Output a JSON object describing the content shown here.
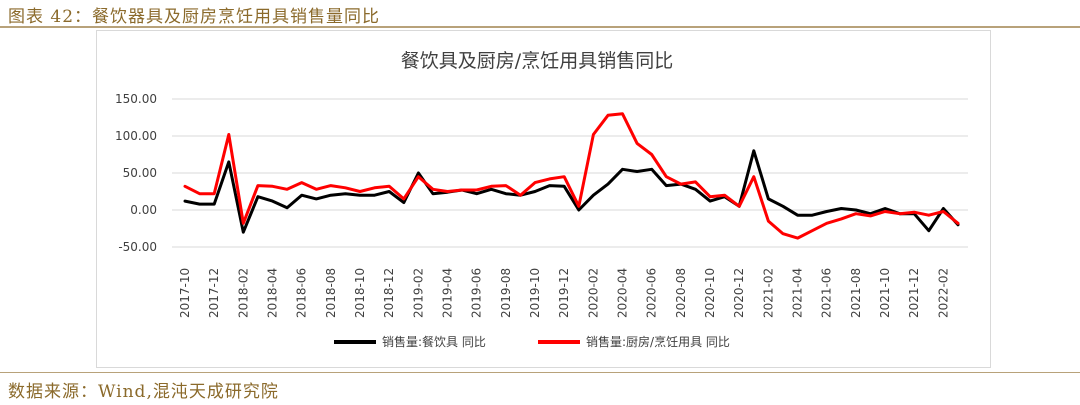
{
  "caption": "图表 42：餐饮器具及厨房烹饪用具销售量同比",
  "source": "数据来源：Wind,混沌天成研究院",
  "chart_data": {
    "type": "line",
    "title": "餐饮具及厨房/烹饪用具销售同比",
    "ylim": [
      -50,
      150
    ],
    "yticks": [
      "150.00",
      "100.00",
      "50.00",
      "0.00",
      "-50.00"
    ],
    "ytick_values": [
      150,
      100,
      50,
      0,
      -50
    ],
    "x": [
      "2017-10",
      "2017-11",
      "2017-12",
      "2018-01",
      "2018-02",
      "2018-03",
      "2018-04",
      "2018-05",
      "2018-06",
      "2018-07",
      "2018-08",
      "2018-09",
      "2018-10",
      "2018-11",
      "2018-12",
      "2019-01",
      "2019-02",
      "2019-03",
      "2019-04",
      "2019-05",
      "2019-06",
      "2019-07",
      "2019-08",
      "2019-09",
      "2019-10",
      "2019-11",
      "2019-12",
      "2020-01",
      "2020-02",
      "2020-03",
      "2020-04",
      "2020-05",
      "2020-06",
      "2020-07",
      "2020-08",
      "2020-09",
      "2020-10",
      "2020-11",
      "2020-12",
      "2021-01",
      "2021-02",
      "2021-03",
      "2021-04",
      "2021-05",
      "2021-06",
      "2021-07",
      "2021-08",
      "2021-09",
      "2021-10",
      "2021-11",
      "2021-12",
      "2022-01",
      "2022-02",
      "2022-03"
    ],
    "xtick_labels": [
      "2017-10",
      "2017-12",
      "2018-02",
      "2018-04",
      "2018-06",
      "2018-08",
      "2018-10",
      "2018-12",
      "2019-02",
      "2019-04",
      "2019-06",
      "2019-08",
      "2019-10",
      "2019-12",
      "2020-02",
      "2020-04",
      "2020-06",
      "2020-08",
      "2020-10",
      "2020-12",
      "2021-02",
      "2021-04",
      "2021-06",
      "2021-08",
      "2021-10",
      "2021-12",
      "2022-02"
    ],
    "legend_position": "bottom",
    "grid": "horizontal",
    "series": [
      {
        "name": "销售量:餐饮具 同比",
        "color": "#000000",
        "values": [
          12,
          8,
          8,
          65,
          -30,
          18,
          12,
          3,
          20,
          15,
          20,
          22,
          20,
          20,
          25,
          10,
          50,
          22,
          24,
          27,
          22,
          28,
          22,
          20,
          25,
          33,
          32,
          0,
          20,
          35,
          55,
          52,
          55,
          33,
          35,
          28,
          12,
          18,
          5,
          80,
          15,
          5,
          -7,
          -7,
          -2,
          2,
          0,
          -5,
          2,
          -5,
          -5,
          -28,
          2,
          -20
        ]
      },
      {
        "name": "销售量:厨房/烹饪用具 同比",
        "color": "#ff0000",
        "values": [
          32,
          22,
          22,
          102,
          -18,
          33,
          32,
          28,
          37,
          28,
          33,
          30,
          25,
          30,
          32,
          15,
          45,
          28,
          25,
          27,
          27,
          32,
          33,
          20,
          37,
          42,
          45,
          5,
          102,
          128,
          130,
          90,
          75,
          45,
          35,
          38,
          18,
          20,
          5,
          45,
          -15,
          -32,
          -38,
          -28,
          -18,
          -12,
          -5,
          -8,
          -2,
          -5,
          -3,
          -7,
          -2,
          -18
        ]
      }
    ]
  }
}
